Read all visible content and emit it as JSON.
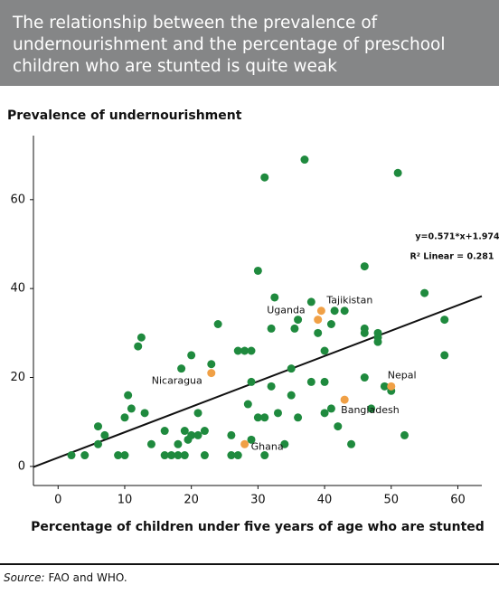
{
  "chart_data": {
    "type": "scatter",
    "title": "The relationship between the prevalence of undernourishment and the percentage of preschool children who are stunted is quite weak",
    "y_label": "Prevalence of undernourishment",
    "x_label": "Percentage of children under five years of age who are stunted",
    "source_label": "Source:",
    "source": "FAO and WHO.",
    "xlim": [
      -3.7,
      63.6
    ],
    "ylim": [
      -4.3,
      74.4
    ],
    "xticks": [
      0,
      10,
      20,
      30,
      40,
      50,
      60
    ],
    "yticks": [
      0,
      20,
      40,
      60
    ],
    "color": "#1f8a3e",
    "x": [
      2,
      4,
      6,
      6,
      7,
      9,
      10,
      10,
      11,
      10.5,
      12,
      12.5,
      13,
      14,
      16,
      16,
      17,
      18,
      18,
      18.5,
      19,
      19,
      19.5,
      20,
      20,
      21,
      21,
      22,
      22,
      23,
      24,
      26,
      26,
      27,
      27,
      28,
      28.5,
      29,
      29,
      29,
      30,
      30,
      31,
      31,
      31,
      32,
      32.5,
      32,
      33,
      34,
      35,
      35,
      35.5,
      36,
      36,
      37,
      38,
      38,
      39,
      40,
      40,
      40,
      41,
      41,
      41.5,
      43,
      42,
      44,
      46,
      46,
      46,
      46,
      47,
      48,
      48,
      48,
      49,
      50,
      51,
      52,
      55,
      58,
      58
    ],
    "values": [
      2.5,
      2.5,
      5,
      9,
      7,
      2.5,
      2.5,
      11,
      13,
      16,
      27,
      29,
      12,
      5,
      2.5,
      8,
      2.5,
      2.5,
      5,
      22,
      2.5,
      8,
      6,
      25,
      7,
      7,
      12,
      2.5,
      8,
      23,
      32,
      7,
      2.5,
      2.5,
      26,
      26,
      14,
      6,
      19,
      26,
      44,
      11,
      11,
      2.5,
      65,
      31,
      38,
      18,
      12,
      5,
      22,
      16,
      31,
      33,
      11,
      69,
      19,
      37,
      30,
      26,
      19,
      12,
      32,
      13,
      35,
      35,
      9,
      5,
      30,
      31,
      45,
      20,
      13,
      28,
      29,
      30,
      18,
      17,
      66,
      7,
      39,
      33,
      25
    ],
    "highlights": {
      "color": "#f0a046",
      "labels": [
        "Nicaragua",
        "Uganda",
        "Tajikistan",
        "Nepal",
        "Bangladesh",
        "Ghana"
      ],
      "x": [
        23,
        39,
        39.5,
        50,
        43,
        28
      ],
      "values": [
        21,
        33,
        35,
        18,
        15,
        5
      ]
    },
    "trendline": {
      "label": "y=0.571*x+1.974",
      "r2_label": "R² Linear = 0.281",
      "slope": 0.571,
      "intercept": 1.974,
      "color": "#111111"
    }
  }
}
